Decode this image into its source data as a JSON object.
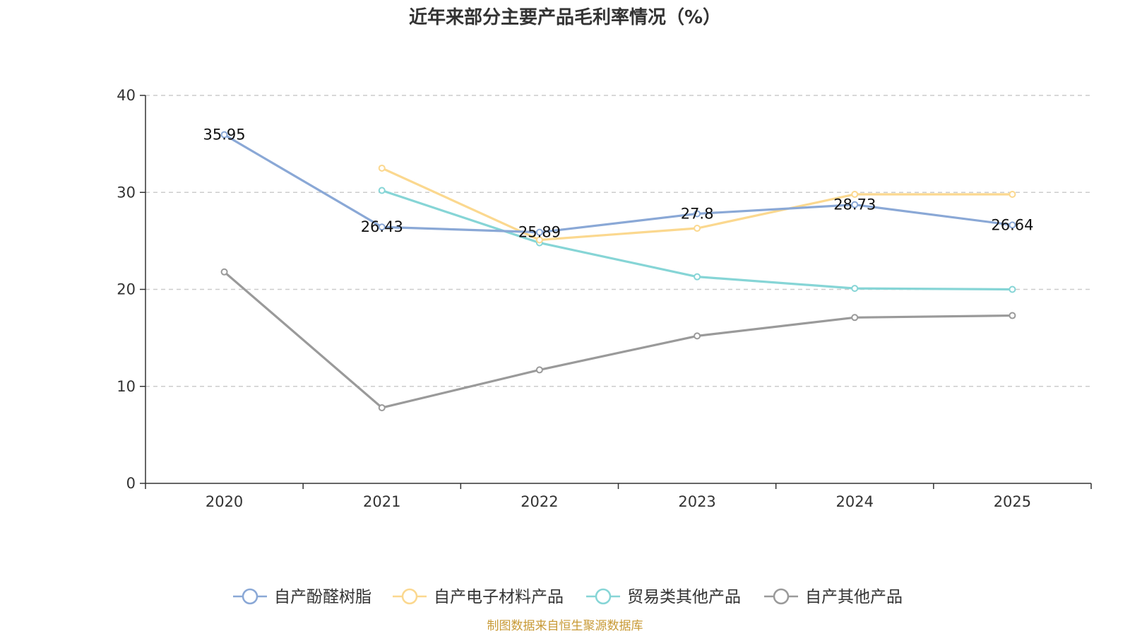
{
  "chart_data": {
    "type": "line",
    "title": "近年来部分主要产品毛利率情况（%）",
    "xlabel": "",
    "ylabel": "",
    "categories": [
      "2020",
      "2021",
      "2022",
      "2023",
      "2024",
      "2025"
    ],
    "ylim": [
      0,
      40
    ],
    "yticks": [
      0,
      10,
      20,
      30,
      40
    ],
    "grid": "dashed-horizontal",
    "legend_position": "bottom-center",
    "series": [
      {
        "name": "自产酚醛树脂",
        "color": "#8aa8d6",
        "values": [
          35.95,
          26.43,
          25.89,
          27.8,
          28.73,
          26.64
        ],
        "labels": [
          "35.95",
          "26.43",
          "25.89",
          "27.8",
          "28.73",
          "26.64"
        ]
      },
      {
        "name": "自产电子材料产品",
        "color": "#fbd88f",
        "values": [
          null,
          32.5,
          25.1,
          26.3,
          29.8,
          29.8
        ]
      },
      {
        "name": "贸易类其他产品",
        "color": "#86d5d6",
        "values": [
          null,
          30.2,
          24.8,
          21.3,
          20.1,
          20.0
        ]
      },
      {
        "name": "自产其他产品",
        "color": "#9a9a9a",
        "values": [
          21.8,
          7.8,
          11.7,
          15.2,
          17.1,
          17.3
        ]
      }
    ],
    "source": "制图数据来自恒生聚源数据库"
  }
}
